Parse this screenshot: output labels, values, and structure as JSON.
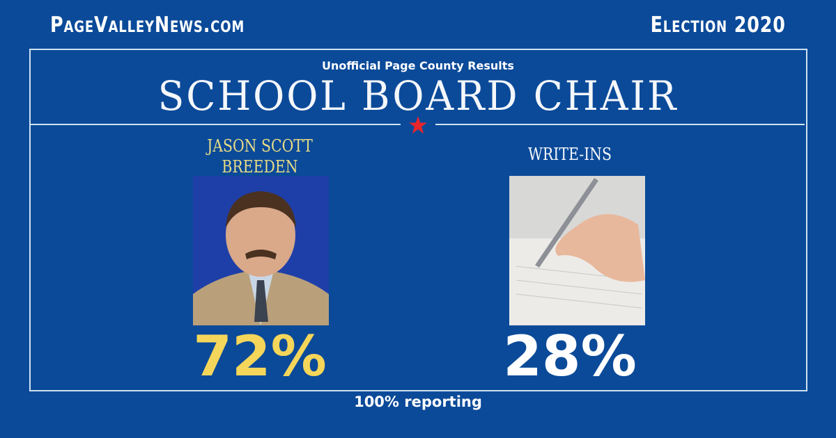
{
  "header": {
    "site": "PageValleyNews.com",
    "election": "Election 2020"
  },
  "race": {
    "subtitle": "Unofficial Page County Results",
    "title": "SCHOOL BOARD CHAIR"
  },
  "candidates": [
    {
      "name_line1": "JASON SCOTT",
      "name_line2": "BREEDEN",
      "percent": "72%",
      "color": "#f5d65a"
    },
    {
      "name_line1": "WRITE-INS",
      "name_line2": "",
      "percent": "28%",
      "color": "#ffffff"
    }
  ],
  "footer": {
    "reporting": "100% reporting"
  },
  "colors": {
    "background": "#0b4a99",
    "accent_star": "#e8262b",
    "winner": "#f5d65a"
  }
}
